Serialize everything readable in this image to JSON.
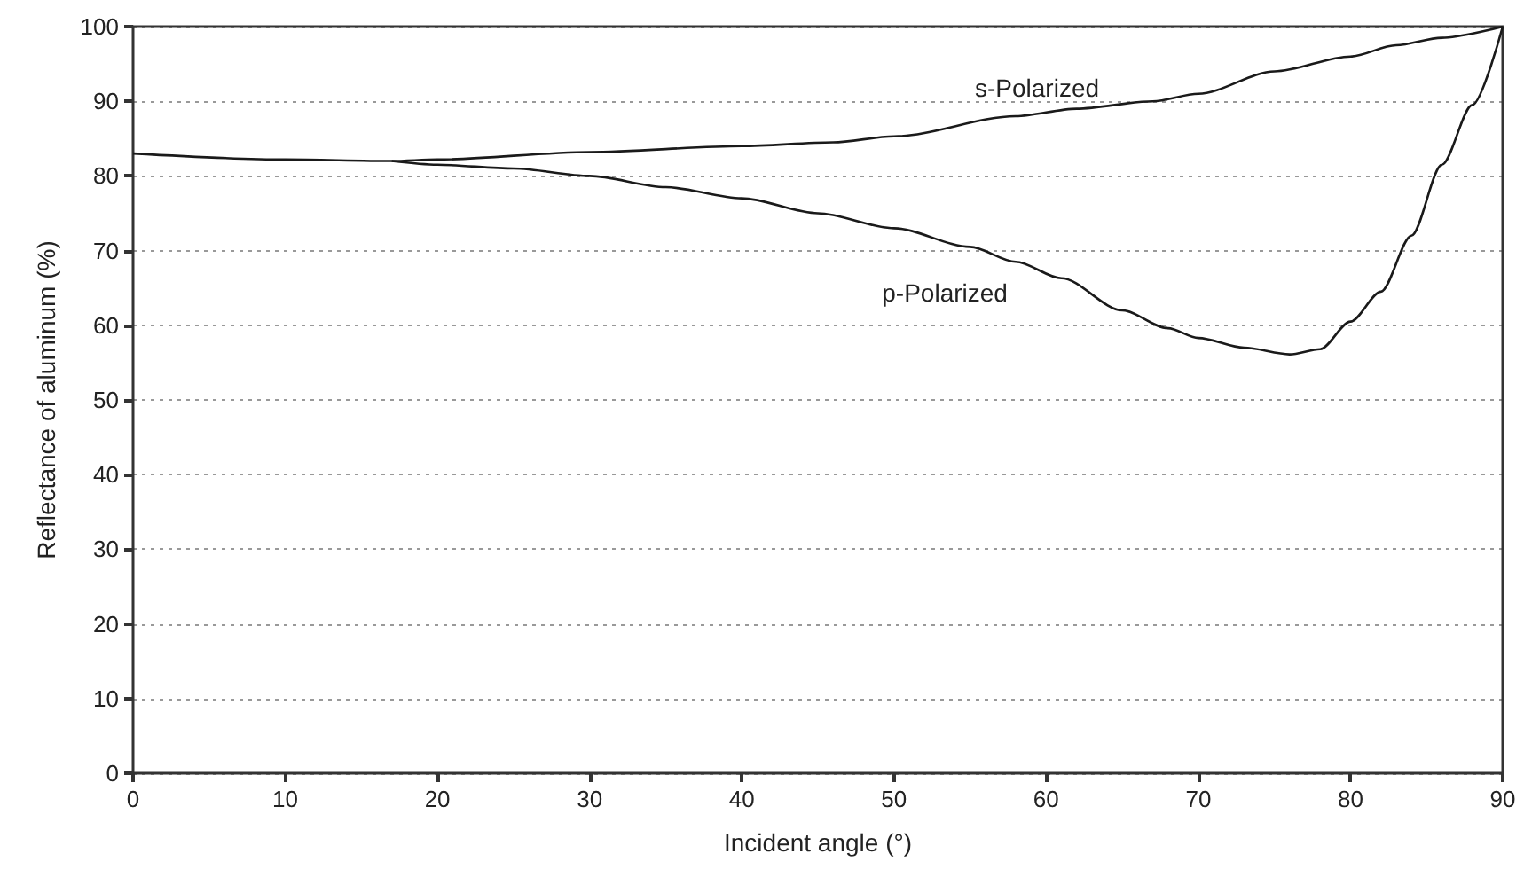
{
  "chart_data": {
    "type": "line",
    "xlabel": "Incident angle (°)",
    "ylabel": "Reflectance of aluminum (%)",
    "xlim": [
      0,
      90
    ],
    "xticks": [
      0,
      10,
      20,
      30,
      40,
      50,
      60,
      70,
      80,
      90
    ],
    "ylim": [
      0,
      100
    ],
    "yticks": [
      0,
      10,
      20,
      30,
      40,
      50,
      60,
      70,
      80,
      90,
      100
    ],
    "grid": "y",
    "marker": "none",
    "line_style": "solid",
    "series": [
      {
        "name": "s-Polarized",
        "color": "#1a1a1a",
        "x": [
          0,
          10,
          17,
          20,
          30,
          40,
          46,
          50,
          58,
          62,
          67,
          70,
          75,
          80,
          83,
          86,
          90
        ],
        "values": [
          83,
          82.2,
          82,
          82.2,
          83.2,
          84,
          84.5,
          85.3,
          88,
          89,
          90,
          91,
          94,
          96,
          97.5,
          98.5,
          100
        ]
      },
      {
        "name": "p-Polarized",
        "color": "#1a1a1a",
        "x": [
          17,
          20,
          25,
          30,
          35,
          40,
          45,
          50,
          55,
          58,
          61,
          65,
          68,
          70,
          73,
          76,
          78,
          80,
          82,
          84,
          86,
          88,
          90
        ],
        "values": [
          82,
          81.5,
          81,
          80,
          78.5,
          77,
          75,
          73,
          70.5,
          68.5,
          66.3,
          62,
          59.6,
          58.3,
          57,
          56.1,
          56.8,
          60.5,
          64.5,
          72,
          81.5,
          89.5,
          100
        ]
      }
    ]
  }
}
